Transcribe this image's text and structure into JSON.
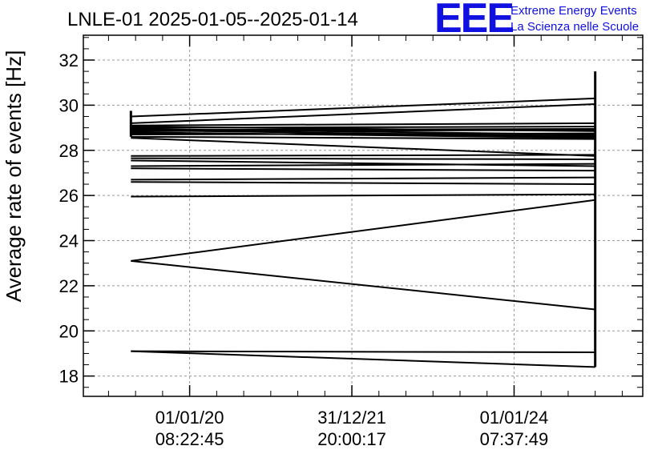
{
  "logo": {
    "mark": "EEE",
    "line1": "Extreme Energy Events",
    "line2": "La Scienza nelle Scuole",
    "color": "#1010e0"
  },
  "chart_data": {
    "type": "line",
    "title": "LNLE-01 2025-01-05--2025-01-14",
    "ylabel": "Average rate of events [Hz]",
    "xlabel": "",
    "ylim": [
      17.1,
      33.1
    ],
    "yticks": [
      18,
      20,
      22,
      24,
      26,
      28,
      30,
      32
    ],
    "x_ticks": [
      {
        "x": 0.19,
        "date": "01/01/20",
        "time": "08:22:45"
      },
      {
        "x": 0.48,
        "date": "31/12/21",
        "time": "20:00:17"
      },
      {
        "x": 0.77,
        "date": "01/01/24",
        "time": "07:37:49"
      }
    ],
    "xlim": [
      0,
      1
    ],
    "grid": true,
    "line_color": "#000000",
    "series": [
      {
        "points": [
          [
            0.085,
            19.1
          ],
          [
            0.915,
            18.4
          ]
        ]
      },
      {
        "points": [
          [
            0.085,
            19.1
          ],
          [
            0.915,
            19.05
          ]
        ]
      },
      {
        "points": [
          [
            0.085,
            23.1
          ],
          [
            0.915,
            25.8
          ]
        ]
      },
      {
        "points": [
          [
            0.085,
            23.1
          ],
          [
            0.915,
            20.95
          ]
        ]
      },
      {
        "points": [
          [
            0.085,
            25.95
          ],
          [
            0.915,
            26.05
          ]
        ]
      },
      {
        "points": [
          [
            0.085,
            26.6
          ],
          [
            0.915,
            26.5
          ]
        ]
      },
      {
        "points": [
          [
            0.085,
            26.7
          ],
          [
            0.915,
            26.8
          ]
        ]
      },
      {
        "points": [
          [
            0.085,
            27.2
          ],
          [
            0.915,
            27.1
          ]
        ]
      },
      {
        "points": [
          [
            0.085,
            27.3
          ],
          [
            0.915,
            27.4
          ]
        ]
      },
      {
        "points": [
          [
            0.085,
            27.55
          ],
          [
            0.915,
            27.3
          ]
        ]
      },
      {
        "points": [
          [
            0.085,
            27.65
          ],
          [
            0.915,
            27.6
          ]
        ]
      },
      {
        "points": [
          [
            0.085,
            27.75
          ],
          [
            0.915,
            27.8
          ]
        ]
      },
      {
        "points": [
          [
            0.085,
            28.55
          ],
          [
            0.915,
            27.75
          ]
        ]
      },
      {
        "points": [
          [
            0.085,
            28.6
          ],
          [
            0.915,
            28.5
          ]
        ]
      },
      {
        "points": [
          [
            0.085,
            28.7
          ],
          [
            0.915,
            28.75
          ]
        ]
      },
      {
        "points": [
          [
            0.085,
            28.8
          ],
          [
            0.915,
            28.55
          ]
        ]
      },
      {
        "points": [
          [
            0.085,
            28.85
          ],
          [
            0.915,
            28.9
          ]
        ]
      },
      {
        "points": [
          [
            0.085,
            28.9
          ],
          [
            0.915,
            28.95
          ]
        ]
      },
      {
        "points": [
          [
            0.085,
            28.95
          ],
          [
            0.915,
            28.7
          ]
        ]
      },
      {
        "points": [
          [
            0.085,
            29.0
          ],
          [
            0.915,
            29.05
          ]
        ]
      },
      {
        "points": [
          [
            0.085,
            29.05
          ],
          [
            0.915,
            28.85
          ]
        ]
      },
      {
        "points": [
          [
            0.085,
            29.1
          ],
          [
            0.915,
            29.2
          ]
        ]
      },
      {
        "points": [
          [
            0.085,
            29.5
          ],
          [
            0.915,
            30.3
          ]
        ]
      },
      {
        "points": [
          [
            0.085,
            29.2
          ],
          [
            0.915,
            30.05
          ]
        ]
      },
      {
        "points": [
          [
            0.085,
            28.75
          ],
          [
            0.915,
            28.65
          ]
        ]
      },
      {
        "points": [
          [
            0.085,
            28.9
          ],
          [
            0.915,
            28.6
          ]
        ]
      }
    ],
    "verticals": [
      {
        "x": 0.085,
        "y": [
          28.6,
          29.75
        ]
      },
      {
        "x": 0.915,
        "y": [
          18.4,
          31.5
        ]
      }
    ]
  }
}
